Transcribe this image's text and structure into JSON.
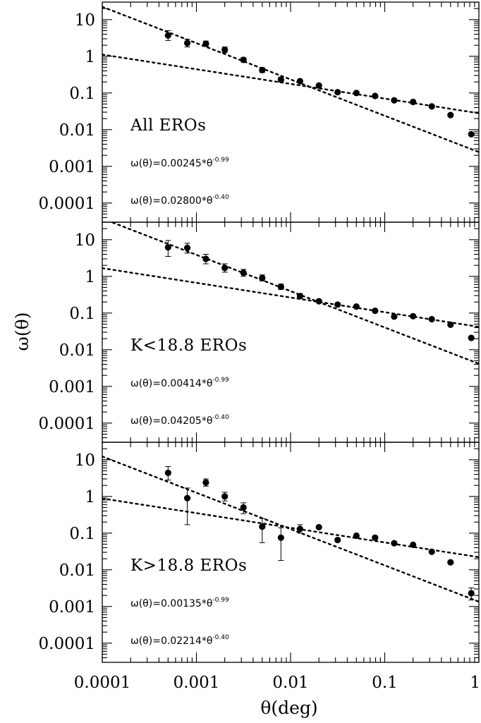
{
  "chart_data": {
    "type": "scatter",
    "layout": "three vertically stacked panels sharing the x axis",
    "xlabel": "θ(deg)",
    "ylabel": "ω(θ)",
    "xscale": "log",
    "yscale": "log",
    "xlim": [
      0.0001,
      1
    ],
    "ylim": [
      3e-05,
      30
    ],
    "x_ticks": [
      "0.0001",
      "0.001",
      "0.01",
      "0.1",
      "1"
    ],
    "y_ticks": [
      "10",
      "1",
      "0.1",
      "0.01",
      "0.001",
      "0.0001"
    ],
    "panels": [
      {
        "label": "All EROs",
        "fits": [
          {
            "prefix": "ω(θ)=0.00245*θ",
            "exponent": "-0.99",
            "amplitude": 0.00245,
            "slope": -0.99
          },
          {
            "prefix": "ω(θ)=0.02800*θ",
            "exponent": "-0.40",
            "amplitude": 0.028,
            "slope": -0.4
          }
        ],
        "points": [
          {
            "x": 0.0005,
            "y": 3.7,
            "lo": 2.7,
            "hi": 5.0
          },
          {
            "x": 0.0008,
            "y": 2.3,
            "lo": 1.8,
            "hi": 2.9
          },
          {
            "x": 0.00126,
            "y": 2.2,
            "lo": 1.85,
            "hi": 2.6
          },
          {
            "x": 0.002,
            "y": 1.5,
            "lo": 1.25,
            "hi": 1.8
          },
          {
            "x": 0.00316,
            "y": 0.8,
            "lo": 0.7,
            "hi": 0.92
          },
          {
            "x": 0.005,
            "y": 0.42,
            "lo": 0.36,
            "hi": 0.49
          },
          {
            "x": 0.0079,
            "y": 0.23,
            "lo": 0.2,
            "hi": 0.27
          },
          {
            "x": 0.0126,
            "y": 0.21
          },
          {
            "x": 0.02,
            "y": 0.16
          },
          {
            "x": 0.0316,
            "y": 0.105
          },
          {
            "x": 0.05,
            "y": 0.1
          },
          {
            "x": 0.079,
            "y": 0.083
          },
          {
            "x": 0.126,
            "y": 0.063
          },
          {
            "x": 0.2,
            "y": 0.057
          },
          {
            "x": 0.316,
            "y": 0.043
          },
          {
            "x": 0.5,
            "y": 0.025
          },
          {
            "x": 0.83,
            "y": 0.0075
          }
        ]
      },
      {
        "label": "K<18.8 EROs",
        "fits": [
          {
            "prefix": "ω(θ)=0.00414*θ",
            "exponent": "-0.99",
            "amplitude": 0.00414,
            "slope": -0.99
          },
          {
            "prefix": "ω(θ)=0.04205*θ",
            "exponent": "-0.40",
            "amplitude": 0.04205,
            "slope": -0.4
          }
        ],
        "points": [
          {
            "x": 0.0005,
            "y": 6.2,
            "lo": 3.5,
            "hi": 9.5
          },
          {
            "x": 0.0008,
            "y": 6.0,
            "lo": 4.3,
            "hi": 8.0
          },
          {
            "x": 0.00126,
            "y": 3.0,
            "lo": 2.2,
            "hi": 4.0
          },
          {
            "x": 0.002,
            "y": 1.7,
            "lo": 1.3,
            "hi": 2.2
          },
          {
            "x": 0.00316,
            "y": 1.25,
            "lo": 1.0,
            "hi": 1.55
          },
          {
            "x": 0.005,
            "y": 0.9,
            "lo": 0.75,
            "hi": 1.1
          },
          {
            "x": 0.0079,
            "y": 0.52,
            "lo": 0.44,
            "hi": 0.62
          },
          {
            "x": 0.0126,
            "y": 0.29,
            "lo": 0.25,
            "hi": 0.34
          },
          {
            "x": 0.02,
            "y": 0.21
          },
          {
            "x": 0.0316,
            "y": 0.17
          },
          {
            "x": 0.05,
            "y": 0.15
          },
          {
            "x": 0.079,
            "y": 0.115
          },
          {
            "x": 0.126,
            "y": 0.08
          },
          {
            "x": 0.2,
            "y": 0.082
          },
          {
            "x": 0.316,
            "y": 0.068
          },
          {
            "x": 0.5,
            "y": 0.048
          },
          {
            "x": 0.83,
            "y": 0.021
          }
        ]
      },
      {
        "label": "K>18.8 EROs",
        "fits": [
          {
            "prefix": "ω(θ)=0.00135*θ",
            "exponent": "-0.99",
            "amplitude": 0.00135,
            "slope": -0.99
          },
          {
            "prefix": "ω(θ)=0.02214*θ",
            "exponent": "-0.40",
            "amplitude": 0.02214,
            "slope": -0.4
          }
        ],
        "points": [
          {
            "x": 0.0005,
            "y": 4.4,
            "lo": 2.8,
            "hi": 6.5
          },
          {
            "x": 0.0008,
            "y": 0.9,
            "lo": 0.17,
            "hi": 1.7
          },
          {
            "x": 0.00126,
            "y": 2.4,
            "lo": 1.9,
            "hi": 3.0
          },
          {
            "x": 0.002,
            "y": 1.0,
            "lo": 0.75,
            "hi": 1.3
          },
          {
            "x": 0.00316,
            "y": 0.5,
            "lo": 0.34,
            "hi": 0.67
          },
          {
            "x": 0.005,
            "y": 0.15,
            "lo": 0.055,
            "hi": 0.25
          },
          {
            "x": 0.0079,
            "y": 0.075,
            "lo": 0.018,
            "hi": 0.14
          },
          {
            "x": 0.0126,
            "y": 0.13,
            "lo": 0.1,
            "hi": 0.17
          },
          {
            "x": 0.02,
            "y": 0.145
          },
          {
            "x": 0.0316,
            "y": 0.065
          },
          {
            "x": 0.05,
            "y": 0.085
          },
          {
            "x": 0.079,
            "y": 0.075
          },
          {
            "x": 0.126,
            "y": 0.053
          },
          {
            "x": 0.2,
            "y": 0.048
          },
          {
            "x": 0.316,
            "y": 0.031
          },
          {
            "x": 0.5,
            "y": 0.016
          },
          {
            "x": 0.83,
            "y": 0.0023,
            "lo": 0.0015,
            "hi": 0.0032
          }
        ]
      }
    ]
  }
}
